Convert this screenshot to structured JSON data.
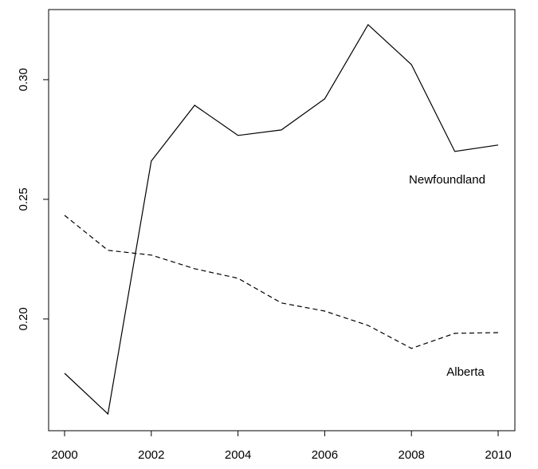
{
  "chart_data": {
    "type": "line",
    "x": [
      2000,
      2001,
      2002,
      2003,
      2004,
      2005,
      2006,
      2007,
      2008,
      2009,
      2010
    ],
    "series": [
      {
        "name": "Newfoundland",
        "color": "#000000",
        "linestyle": "solid",
        "values": [
          0.1773,
          0.1603,
          0.266,
          0.2893,
          0.2767,
          0.279,
          0.292,
          0.323,
          0.3063,
          0.27,
          0.2727
        ]
      },
      {
        "name": "Alberta",
        "color": "#000000",
        "linestyle": "dashed",
        "values": [
          0.2433,
          0.2287,
          0.2267,
          0.221,
          0.217,
          0.2067,
          0.2033,
          0.1973,
          0.1877,
          0.194,
          0.1943
        ]
      }
    ],
    "xlim": [
      1999.632,
      2010.386
    ],
    "ylim": [
      0.1533,
      0.3293
    ],
    "xticks": [
      2000,
      2002,
      2004,
      2006,
      2008,
      2010
    ],
    "yticks": [
      {
        "value": 0.2,
        "label": "0.20"
      },
      0.25,
      {
        "value": 0.3,
        "label": "0.30"
      }
    ],
    "grid": false
  }
}
